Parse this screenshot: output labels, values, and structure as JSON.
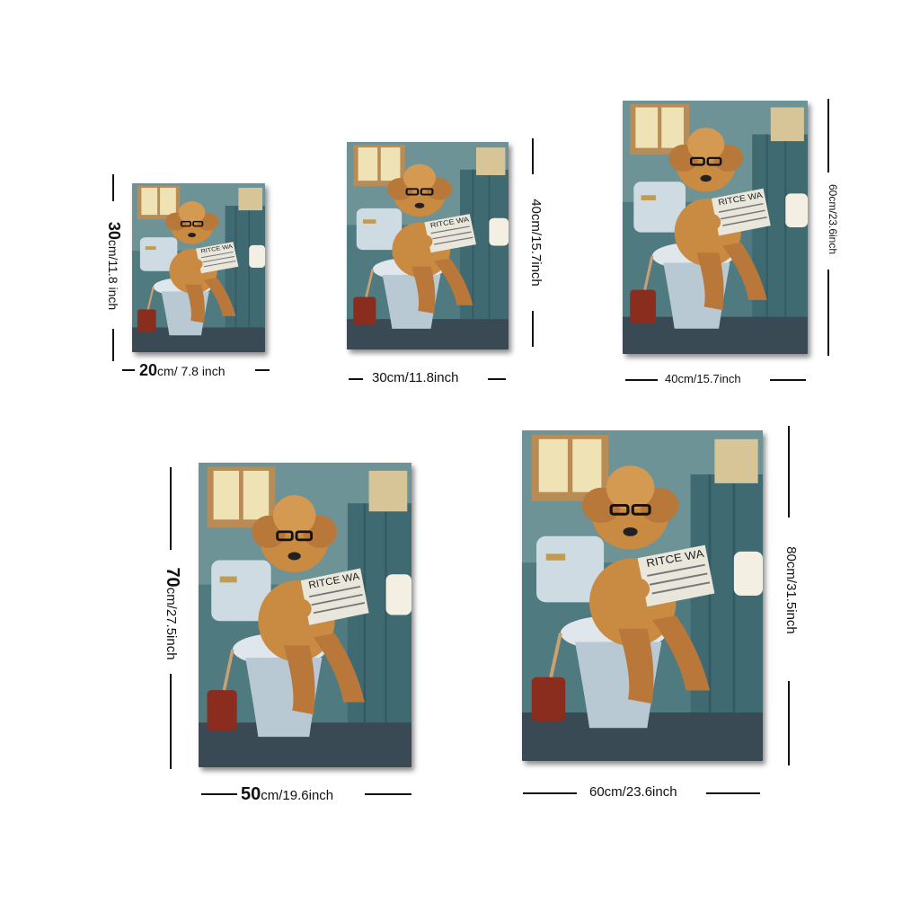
{
  "products": [
    {
      "id": "s1",
      "width_label": {
        "num": "20",
        "unit": "cm/ 7.8 inch"
      },
      "height_label": {
        "num": "30",
        "unit": "cm/11.8 inch"
      }
    },
    {
      "id": "s2",
      "width_label": {
        "num": "",
        "unit": "30cm/11.8inch"
      },
      "height_label": {
        "num": "",
        "unit": "40cm/15.7inch"
      }
    },
    {
      "id": "s3",
      "width_label": {
        "num": "",
        "unit": "40cm/15.7inch"
      },
      "height_label": {
        "num": "",
        "unit": "60cm/23.6inch"
      }
    },
    {
      "id": "s4",
      "width_label": {
        "num": "50",
        "unit": "cm/19.6inch"
      },
      "height_label": {
        "num": "70",
        "unit": "cm/27.5inch"
      }
    },
    {
      "id": "s5",
      "width_label": {
        "num": "",
        "unit": "60cm/23.6inch"
      },
      "height_label": {
        "num": "",
        "unit": "80cm/31.5inch"
      }
    }
  ],
  "newspaper_headline": "RITCE WA",
  "colors": {
    "wall": "#5f8a8f",
    "fur": "#c98a42",
    "toilet": "#cfdbe3",
    "window": "#e9d9a8",
    "bucket": "#8a2c1e"
  },
  "icons": [
    "dog-on-toilet-artwork",
    "dimension-line"
  ]
}
